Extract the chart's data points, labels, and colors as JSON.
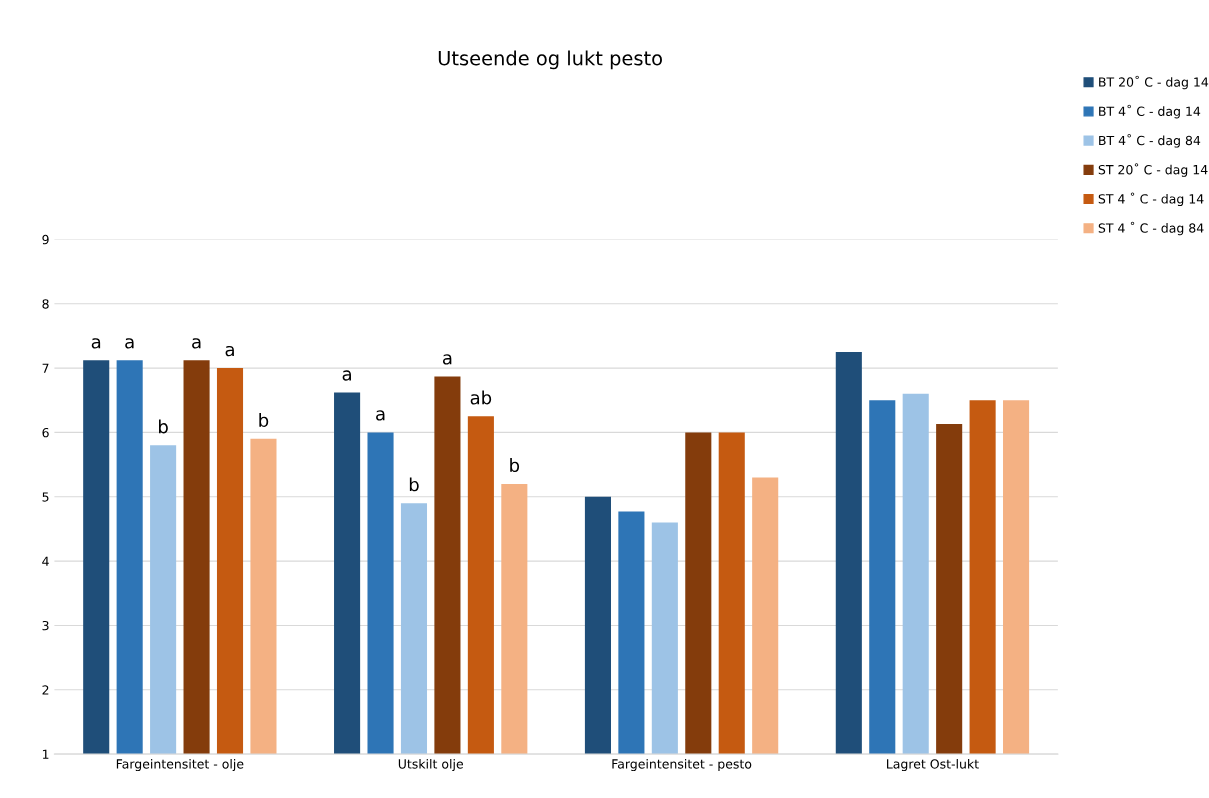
{
  "chart_data": {
    "type": "bar",
    "title": "Utseende og lukt pesto",
    "categories": [
      "Fargeintensitet - olje",
      "Utskilt olje",
      "Fargeintensitet - pesto",
      "Lagret Ost-lukt"
    ],
    "series": [
      {
        "name": "BT 20˚ C - dag 14",
        "color": "#1f4e79",
        "values": [
          7.12,
          6.62,
          5.0,
          7.25
        ],
        "value_labels": [
          "a",
          "a",
          null,
          null
        ]
      },
      {
        "name": "BT 4˚ C - dag 14",
        "color": "#2e75b6",
        "values": [
          7.12,
          6.0,
          4.77,
          6.5
        ],
        "value_labels": [
          "a",
          "a",
          null,
          null
        ]
      },
      {
        "name": "BT 4˚ C - dag 84",
        "color": "#9dc3e6",
        "values": [
          5.8,
          4.9,
          4.6,
          6.6
        ],
        "value_labels": [
          "b",
          "b",
          null,
          null
        ]
      },
      {
        "name": "ST 20˚ C - dag 14",
        "color": "#843c0c",
        "values": [
          7.12,
          6.87,
          6.0,
          6.13
        ],
        "value_labels": [
          "a",
          "a",
          null,
          null
        ]
      },
      {
        "name": "ST 4 ˚ C - dag 14",
        "color": "#c55a11",
        "values": [
          7.0,
          6.25,
          6.0,
          6.5
        ],
        "value_labels": [
          "a",
          "ab",
          null,
          null
        ]
      },
      {
        "name": "ST 4 ˚ C - dag 84",
        "color": "#f4b183",
        "values": [
          5.9,
          5.2,
          5.3,
          6.5
        ],
        "value_labels": [
          "b",
          "b",
          null,
          null
        ]
      }
    ],
    "ylim": [
      1,
      9
    ],
    "yticks": [
      1,
      2,
      3,
      4,
      5,
      6,
      7,
      8,
      9
    ],
    "grid": "y",
    "legend": "right"
  }
}
